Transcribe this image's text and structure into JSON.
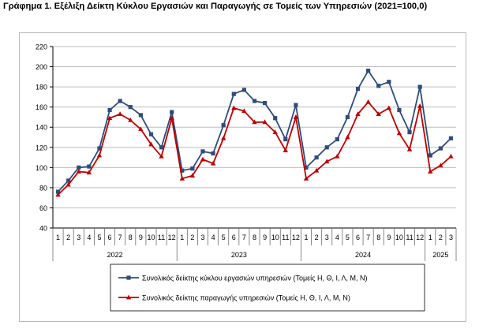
{
  "title": "Γράφημα 1. Εξέλιξη Δείκτη Κύκλου Εργασιών και Παραγωγής σε Τομείς των Υπηρεσιών (2021=100,0)",
  "colors": {
    "turnover": "#2e4d7b",
    "production": "#c00000",
    "grid": "#bdbdbd",
    "axis": "#000000"
  },
  "chart_data": {
    "type": "line",
    "title": "Γράφημα 1. Εξέλιξη Δείκτη Κύκλου Εργασιών και Παραγωγής σε Τομείς των Υπηρεσιών (2021=100,0)",
    "xlabel": "",
    "ylabel": "",
    "ylim": [
      40,
      220
    ],
    "ytick_step": 20,
    "yticks": [
      "40",
      "60",
      "80",
      "100",
      "120",
      "140",
      "160",
      "180",
      "200",
      "220"
    ],
    "grid": true,
    "legend_position": "bottom",
    "categories": [
      "1",
      "2",
      "3",
      "4",
      "5",
      "6",
      "7",
      "8",
      "9",
      "10",
      "11",
      "12",
      "1",
      "2",
      "3",
      "4",
      "5",
      "6",
      "7",
      "8",
      "9",
      "10",
      "11",
      "12",
      "1",
      "2",
      "3",
      "4",
      "5",
      "6",
      "7",
      "8",
      "9",
      "10",
      "11",
      "12",
      "1",
      "2",
      "3"
    ],
    "year_groups": [
      {
        "label": "2022",
        "start": 0,
        "count": 12
      },
      {
        "label": "2023",
        "start": 12,
        "count": 12
      },
      {
        "label": "2024",
        "start": 24,
        "count": 12
      },
      {
        "label": "2025",
        "start": 36,
        "count": 3
      }
    ],
    "series": [
      {
        "name": "Συνολικός δείκτης κύκλου εργασιών υπηρεσιών (Τομείς Η, Θ, Ι, Λ, Μ, Ν)",
        "marker": "square",
        "values": [
          76,
          87,
          100,
          101,
          119,
          157,
          166,
          160,
          152,
          133,
          120,
          155,
          97,
          99,
          116,
          114,
          142,
          173,
          177,
          166,
          164,
          149,
          128,
          162,
          100,
          110,
          120,
          128,
          150,
          178,
          196,
          181,
          185,
          157,
          135,
          180,
          112,
          119,
          129
        ]
      },
      {
        "name": "Συνολικός δείκτης παραγωγής υπηρεσιών (Τομείς Η, Θ, Ι, Λ, Μ, Ν)",
        "marker": "triangle",
        "values": [
          73,
          83,
          96,
          95,
          112,
          149,
          153,
          147,
          138,
          123,
          111,
          149,
          89,
          92,
          108,
          104,
          129,
          159,
          156,
          145,
          145,
          135,
          117,
          150,
          89,
          97,
          106,
          111,
          130,
          153,
          165,
          153,
          159,
          134,
          118,
          161,
          96,
          102,
          111
        ]
      }
    ]
  }
}
